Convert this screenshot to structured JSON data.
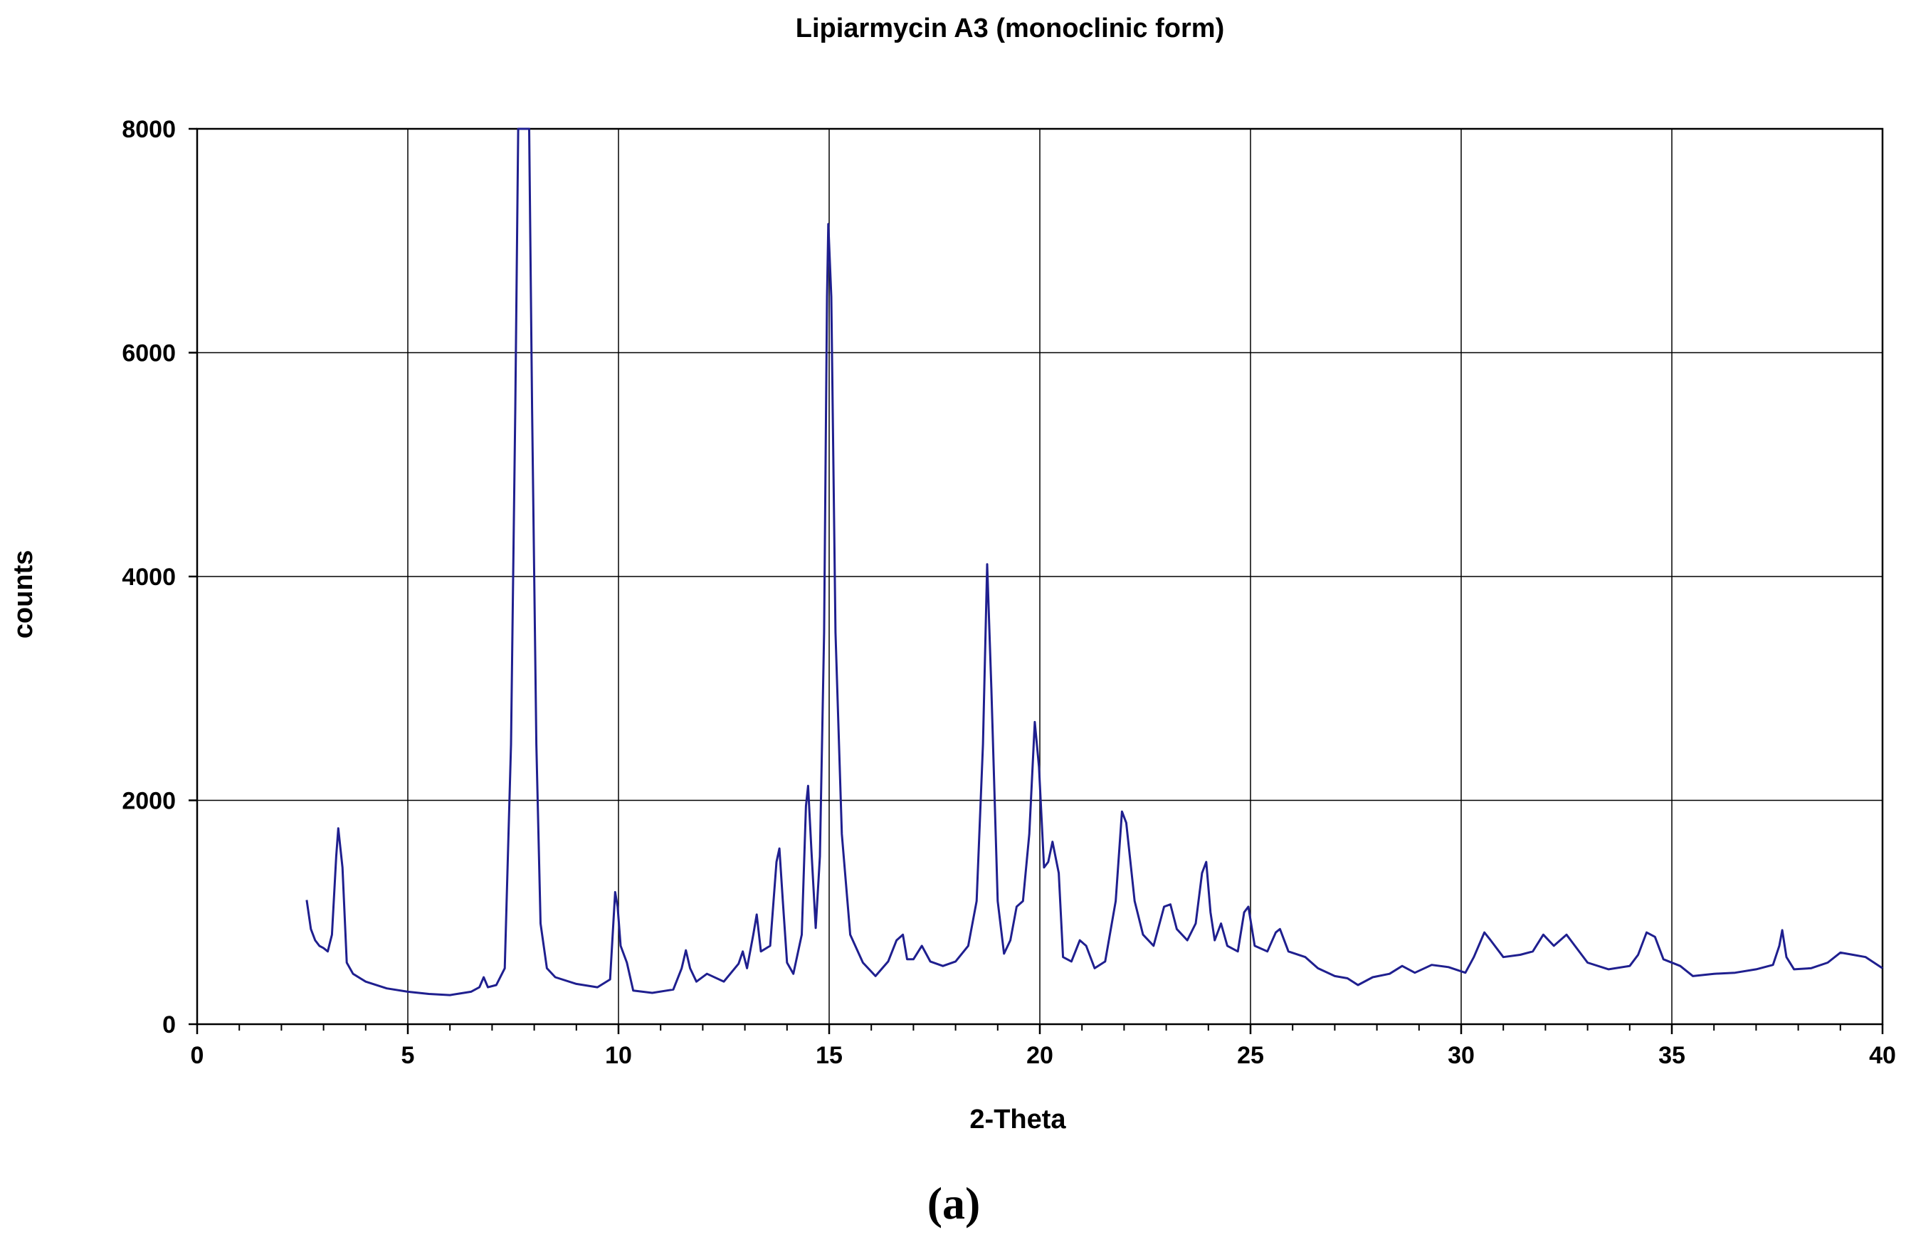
{
  "chart_data": {
    "type": "line",
    "title": "Lipiarmycin A3  (monoclinic form)",
    "xlabel": "2-Theta",
    "ylabel": "counts",
    "xlim": [
      0,
      40
    ],
    "ylim": [
      0,
      8000
    ],
    "xticks": [
      0,
      5,
      10,
      15,
      20,
      25,
      30,
      35,
      40
    ],
    "yticks": [
      0,
      2000,
      4000,
      6000,
      8000
    ],
    "grid": true,
    "line_color": "#1f1f8f",
    "series": [
      {
        "points": [
          [
            2.6,
            1110
          ],
          [
            2.7,
            850
          ],
          [
            2.8,
            750
          ],
          [
            2.9,
            700
          ],
          [
            3.0,
            680
          ],
          [
            3.1,
            650
          ],
          [
            3.2,
            800
          ],
          [
            3.3,
            1500
          ],
          [
            3.35,
            1750
          ],
          [
            3.45,
            1400
          ],
          [
            3.55,
            550
          ],
          [
            3.7,
            450
          ],
          [
            4.0,
            380
          ],
          [
            4.5,
            320
          ],
          [
            5.0,
            290
          ],
          [
            5.5,
            270
          ],
          [
            6.0,
            260
          ],
          [
            6.5,
            290
          ],
          [
            6.7,
            330
          ],
          [
            6.8,
            420
          ],
          [
            6.9,
            330
          ],
          [
            7.1,
            350
          ],
          [
            7.3,
            500
          ],
          [
            7.45,
            2500
          ],
          [
            7.55,
            5500
          ],
          [
            7.62,
            8000
          ],
          [
            7.88,
            8000
          ],
          [
            7.95,
            5500
          ],
          [
            8.05,
            2500
          ],
          [
            8.15,
            900
          ],
          [
            8.3,
            500
          ],
          [
            8.5,
            420
          ],
          [
            9.0,
            360
          ],
          [
            9.5,
            330
          ],
          [
            9.8,
            400
          ],
          [
            9.92,
            1180
          ],
          [
            9.98,
            1050
          ],
          [
            10.05,
            700
          ],
          [
            10.2,
            550
          ],
          [
            10.35,
            300
          ],
          [
            10.8,
            280
          ],
          [
            11.3,
            310
          ],
          [
            11.5,
            500
          ],
          [
            11.6,
            660
          ],
          [
            11.7,
            500
          ],
          [
            11.85,
            380
          ],
          [
            12.1,
            450
          ],
          [
            12.5,
            380
          ],
          [
            12.85,
            540
          ],
          [
            12.95,
            650
          ],
          [
            13.05,
            500
          ],
          [
            13.2,
            800
          ],
          [
            13.28,
            980
          ],
          [
            13.38,
            650
          ],
          [
            13.6,
            700
          ],
          [
            13.75,
            1450
          ],
          [
            13.82,
            1570
          ],
          [
            13.9,
            1100
          ],
          [
            14.0,
            550
          ],
          [
            14.15,
            450
          ],
          [
            14.35,
            800
          ],
          [
            14.45,
            1950
          ],
          [
            14.5,
            2130
          ],
          [
            14.58,
            1550
          ],
          [
            14.68,
            860
          ],
          [
            14.78,
            1500
          ],
          [
            14.88,
            3500
          ],
          [
            14.95,
            6500
          ],
          [
            14.98,
            7150
          ],
          [
            15.05,
            6500
          ],
          [
            15.15,
            3500
          ],
          [
            15.3,
            1700
          ],
          [
            15.5,
            800
          ],
          [
            15.8,
            550
          ],
          [
            16.1,
            430
          ],
          [
            16.4,
            560
          ],
          [
            16.6,
            750
          ],
          [
            16.75,
            800
          ],
          [
            16.85,
            580
          ],
          [
            17.0,
            580
          ],
          [
            17.2,
            700
          ],
          [
            17.4,
            560
          ],
          [
            17.7,
            520
          ],
          [
            18.0,
            560
          ],
          [
            18.3,
            700
          ],
          [
            18.5,
            1100
          ],
          [
            18.65,
            2500
          ],
          [
            18.75,
            4110
          ],
          [
            18.85,
            3000
          ],
          [
            19.0,
            1100
          ],
          [
            19.15,
            630
          ],
          [
            19.3,
            750
          ],
          [
            19.45,
            1050
          ],
          [
            19.6,
            1100
          ],
          [
            19.75,
            1700
          ],
          [
            19.88,
            2700
          ],
          [
            19.98,
            2300
          ],
          [
            20.1,
            1400
          ],
          [
            20.2,
            1450
          ],
          [
            20.3,
            1630
          ],
          [
            20.45,
            1350
          ],
          [
            20.55,
            600
          ],
          [
            20.75,
            560
          ],
          [
            20.95,
            750
          ],
          [
            21.1,
            700
          ],
          [
            21.3,
            500
          ],
          [
            21.55,
            560
          ],
          [
            21.8,
            1100
          ],
          [
            21.95,
            1900
          ],
          [
            22.05,
            1800
          ],
          [
            22.25,
            1100
          ],
          [
            22.45,
            800
          ],
          [
            22.7,
            700
          ],
          [
            22.95,
            1050
          ],
          [
            23.1,
            1070
          ],
          [
            23.25,
            850
          ],
          [
            23.5,
            750
          ],
          [
            23.7,
            900
          ],
          [
            23.85,
            1350
          ],
          [
            23.95,
            1450
          ],
          [
            24.05,
            1000
          ],
          [
            24.15,
            750
          ],
          [
            24.3,
            900
          ],
          [
            24.45,
            700
          ],
          [
            24.7,
            650
          ],
          [
            24.85,
            1000
          ],
          [
            24.95,
            1050
          ],
          [
            25.1,
            700
          ],
          [
            25.4,
            650
          ],
          [
            25.6,
            820
          ],
          [
            25.7,
            850
          ],
          [
            25.9,
            650
          ],
          [
            26.3,
            600
          ],
          [
            26.6,
            500
          ],
          [
            27.0,
            430
          ],
          [
            27.3,
            410
          ],
          [
            27.55,
            350
          ],
          [
            27.9,
            420
          ],
          [
            28.3,
            450
          ],
          [
            28.6,
            520
          ],
          [
            28.9,
            460
          ],
          [
            29.3,
            530
          ],
          [
            29.7,
            510
          ],
          [
            30.1,
            460
          ],
          [
            30.3,
            600
          ],
          [
            30.55,
            820
          ],
          [
            30.7,
            750
          ],
          [
            31.0,
            600
          ],
          [
            31.4,
            620
          ],
          [
            31.7,
            650
          ],
          [
            31.95,
            800
          ],
          [
            32.2,
            700
          ],
          [
            32.5,
            800
          ],
          [
            32.7,
            700
          ],
          [
            33.0,
            550
          ],
          [
            33.5,
            490
          ],
          [
            34.0,
            520
          ],
          [
            34.2,
            620
          ],
          [
            34.4,
            820
          ],
          [
            34.6,
            780
          ],
          [
            34.8,
            580
          ],
          [
            35.2,
            520
          ],
          [
            35.5,
            430
          ],
          [
            36.0,
            450
          ],
          [
            36.5,
            460
          ],
          [
            37.0,
            490
          ],
          [
            37.4,
            530
          ],
          [
            37.55,
            700
          ],
          [
            37.62,
            840
          ],
          [
            37.72,
            600
          ],
          [
            37.9,
            490
          ],
          [
            38.3,
            500
          ],
          [
            38.7,
            550
          ],
          [
            39.0,
            640
          ],
          [
            39.3,
            620
          ],
          [
            39.6,
            600
          ],
          [
            40.0,
            500
          ]
        ]
      }
    ]
  },
  "caption": "(a)"
}
